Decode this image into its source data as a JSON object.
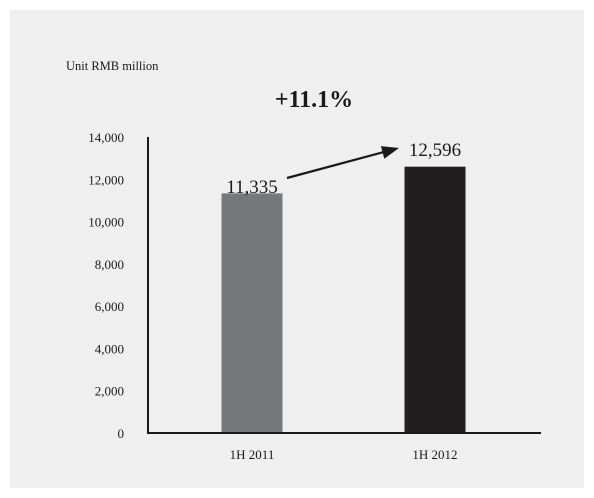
{
  "unit_label": "Unit RMB million",
  "growth_label": "+11.1%",
  "colors": {
    "panel_background": "#efefef",
    "bar_1h2011": "#777879",
    "bar_1h2012": "#221e1f",
    "axis": "#1a1a1a",
    "arrow": "#1a1a1a"
  },
  "chart_data": {
    "type": "bar",
    "title": "",
    "xlabel": "",
    "ylabel": "Unit RMB million",
    "annotation": "+11.1%",
    "categories": [
      "1H 2011",
      "1H 2012"
    ],
    "values": [
      11335,
      12596
    ],
    "value_labels": [
      "11,335",
      "12,596"
    ],
    "bar_colors": [
      "#777879",
      "#221e1f"
    ],
    "ylim": [
      0,
      14000
    ],
    "yticks": [
      0,
      2000,
      4000,
      6000,
      8000,
      10000,
      12000,
      14000
    ],
    "ytick_labels": [
      "0",
      "2,000",
      "4,000",
      "6,000",
      "8,000",
      "10,000",
      "12,000",
      "14,000"
    ],
    "grid": false,
    "legend": "none"
  }
}
